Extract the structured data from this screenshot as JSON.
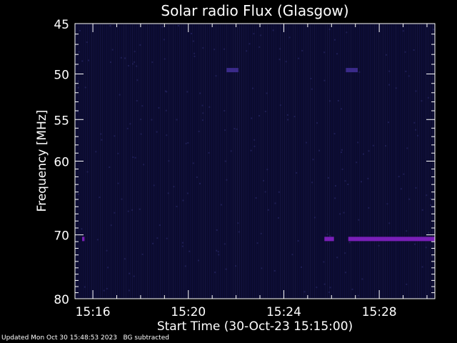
{
  "chart_data": {
    "type": "heatmap",
    "title": "Solar radio Flux (Glasgow)",
    "xlabel": "Start Time (30-Oct-23 15:15:00)",
    "ylabel": "Frequency [MHz]",
    "x_range_minutes": [
      15.25,
      30.33
    ],
    "x_ticks": [
      {
        "minute": 16,
        "label": "15:16"
      },
      {
        "minute": 20,
        "label": "15:20"
      },
      {
        "minute": 24,
        "label": "15:24"
      },
      {
        "minute": 28,
        "label": "15:28"
      }
    ],
    "ylim": [
      45,
      80
    ],
    "y_scale": "log",
    "y_ticks": [
      45,
      50,
      55,
      60,
      70,
      80
    ],
    "background_color": "#0b0b2e",
    "features": [
      {
        "name": "interference",
        "freq_mhz": 70.6,
        "start_minute": 15.55,
        "end_minute": 15.65,
        "color": "#7a1fb8"
      },
      {
        "name": "interference",
        "freq_mhz": 70.6,
        "start_minute": 25.7,
        "end_minute": 26.1,
        "color": "#7a1fb8"
      },
      {
        "name": "interference",
        "freq_mhz": 70.6,
        "start_minute": 26.7,
        "end_minute": 30.33,
        "color": "#7a1fb8"
      },
      {
        "name": "interference",
        "freq_mhz": 49.6,
        "start_minute": 21.6,
        "end_minute": 22.1,
        "color": "#3a2a8a"
      },
      {
        "name": "interference",
        "freq_mhz": 49.6,
        "start_minute": 26.6,
        "end_minute": 27.1,
        "color": "#3a2a8a"
      }
    ]
  },
  "footer": {
    "updated": "Updated Mon Oct 30 15:48:53 2023",
    "note": "BG subtracted"
  }
}
